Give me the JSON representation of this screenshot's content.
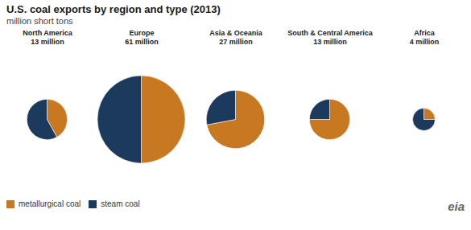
{
  "chart_data": {
    "type": "pie",
    "title": "U.S. coal exports by region and type (2013)",
    "subtitle": "million short tons",
    "categories": [
      "metallurgical coal",
      "steam coal"
    ],
    "colors": [
      "#c87820",
      "#1b3a5c"
    ],
    "legend": "lower left",
    "annotation": "eia",
    "pies": [
      {
        "name": "North America",
        "total": 13,
        "total_label": "13 million",
        "values": [
          0.42,
          0.58
        ]
      },
      {
        "name": "Europe",
        "total": 61,
        "total_label": "61 million",
        "values": [
          0.5,
          0.5
        ]
      },
      {
        "name": "Asia & Oceania",
        "total": 27,
        "total_label": "27 million",
        "values": [
          0.72,
          0.28
        ]
      },
      {
        "name": "South & Central America",
        "total": 13,
        "total_label": "13 million",
        "values": [
          0.75,
          0.25
        ]
      },
      {
        "name": "Africa",
        "total": 4,
        "total_label": "4 million",
        "values": [
          0.25,
          0.75
        ]
      }
    ]
  }
}
